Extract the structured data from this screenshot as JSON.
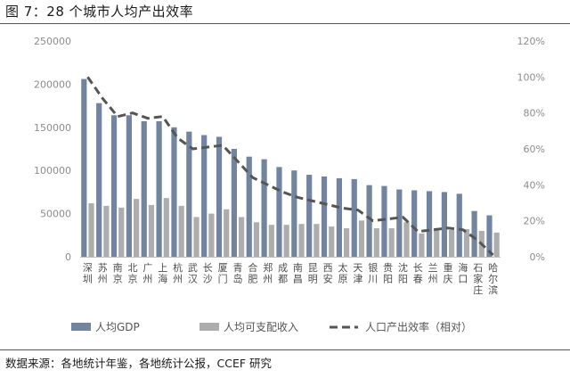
{
  "figure": {
    "title": "图 7：28 个城市人均产出效率",
    "source": "数据来源：各地统计年鉴，各地统计公报，CCEF 研究"
  },
  "chart_data": {
    "type": "bar",
    "categories": [
      "深圳",
      "苏州",
      "南京",
      "北京",
      "广州",
      "上海",
      "杭州",
      "武汉",
      "长沙",
      "厦门",
      "青岛",
      "合肥",
      "郑州",
      "成都",
      "南昌",
      "昆明",
      "西安",
      "太原",
      "天津",
      "银川",
      "贵阳",
      "沈阳",
      "长春",
      "兰州",
      "重庆",
      "海口",
      "石家庄",
      "哈尔滨"
    ],
    "series": [
      {
        "name": "人均GDP",
        "kind": "bar",
        "axis": "left",
        "color": "#7384a0",
        "values": [
          206000,
          178000,
          164000,
          164000,
          157000,
          157000,
          150000,
          145000,
          141000,
          139000,
          125000,
          116000,
          113000,
          104000,
          100000,
          95000,
          93000,
          91000,
          90000,
          83000,
          82000,
          78000,
          77000,
          76000,
          75000,
          73000,
          53000,
          48000
        ]
      },
      {
        "name": "人均可支配收入",
        "kind": "bar",
        "axis": "left",
        "color": "#adadad",
        "values": [
          62000,
          59000,
          57000,
          67000,
          60000,
          68000,
          59000,
          46000,
          50000,
          55000,
          46000,
          40000,
          37000,
          37000,
          38000,
          38000,
          35000,
          33000,
          42000,
          33000,
          33000,
          40000,
          27000,
          32000,
          31000,
          32000,
          30000,
          28000
        ]
      },
      {
        "name": "人口产出效率（相对）",
        "kind": "line",
        "axis": "right",
        "color": "#555555",
        "dash": true,
        "values": [
          1.0,
          0.88,
          0.78,
          0.8,
          0.77,
          0.78,
          0.66,
          0.6,
          0.61,
          0.62,
          0.53,
          0.44,
          0.4,
          0.36,
          0.33,
          0.31,
          0.29,
          0.27,
          0.26,
          0.2,
          0.21,
          0.22,
          0.14,
          0.15,
          0.16,
          0.15,
          0.09,
          0.01
        ]
      }
    ],
    "left_axis": {
      "min": 0,
      "max": 250000,
      "step": 50000,
      "tick_labels": [
        "0",
        "50000",
        "100000",
        "150000",
        "200000",
        "250000"
      ]
    },
    "right_axis": {
      "min": 0,
      "max": 1.2,
      "step": 0.2,
      "tick_labels": [
        "0%",
        "20%",
        "40%",
        "60%",
        "80%",
        "100%",
        "120%"
      ]
    },
    "grid": false,
    "legend_position": "bottom",
    "legend": [
      "人均GDP",
      "人均可支配收入",
      "人口产出效率（相对）"
    ]
  }
}
